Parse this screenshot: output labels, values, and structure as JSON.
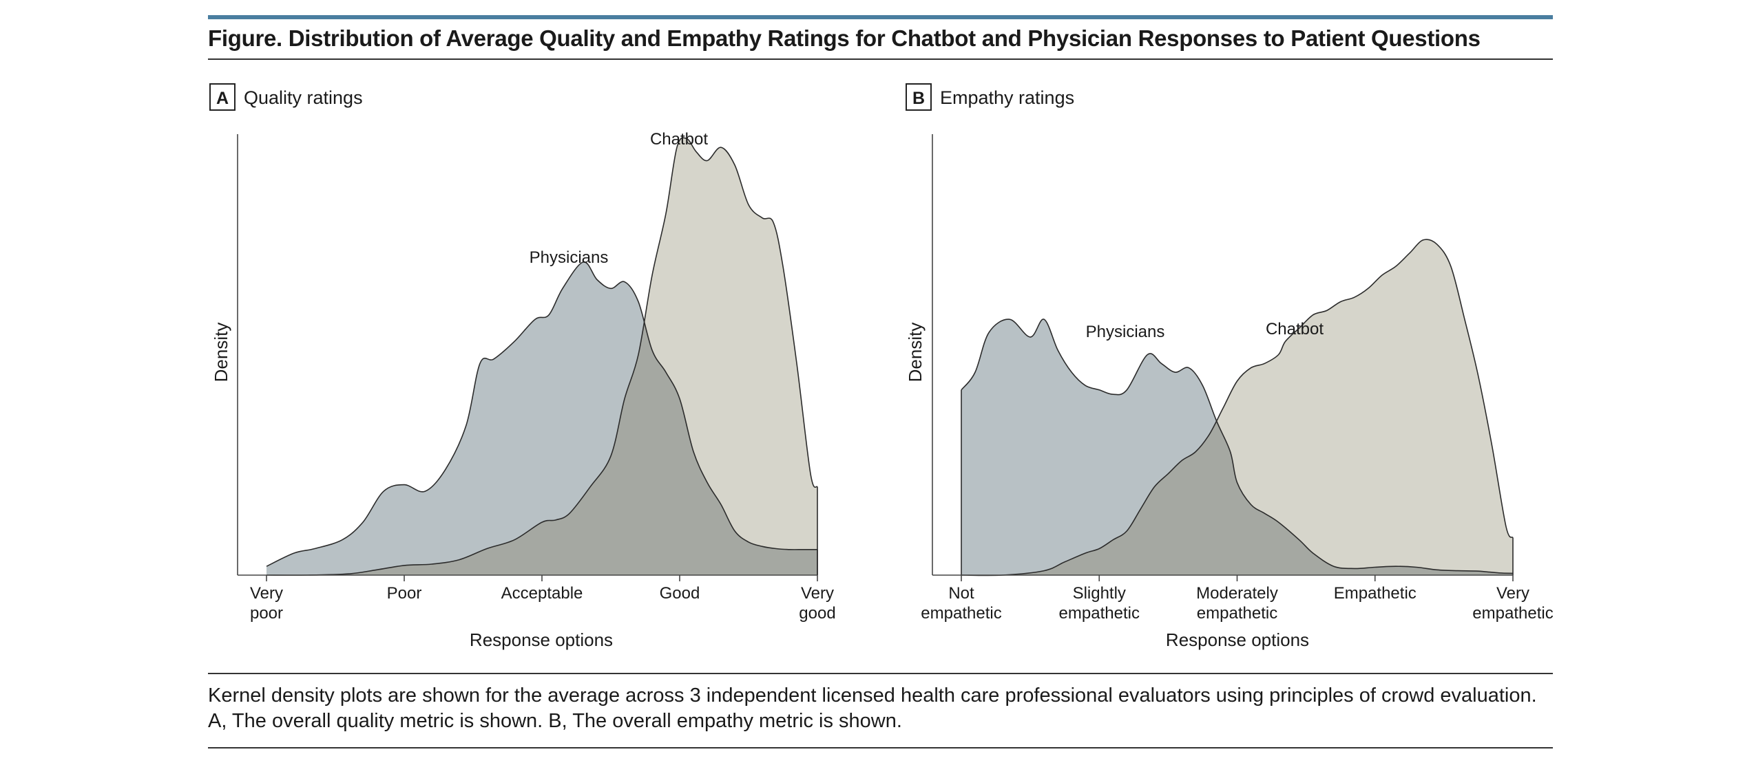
{
  "figure": {
    "title": "Figure. Distribution of Average Quality and Empathy Ratings for Chatbot and Physician Responses to Patient Questions",
    "caption": "Kernel density plots are shown for the average across 3 independent licensed health care professional evaluators using principles of crowd evaluation. A, The overall quality metric is shown. B, The overall empathy metric is shown."
  },
  "colors": {
    "physicians": "#b8c1c5",
    "chatbot": "#d6d5cb",
    "overlap": "#a5a8a2",
    "stroke": "#2b2b2b",
    "accent_rule": "#4a7ea0"
  },
  "chart_data": [
    {
      "type": "area",
      "panel_letter": "A",
      "panel_title": "Quality ratings",
      "xlabel": "Response options",
      "ylabel": "Density",
      "xlim": [
        1,
        5
      ],
      "ylim": [
        0,
        1
      ],
      "tick_labels": [
        [
          "Very",
          "poor"
        ],
        [
          "Poor"
        ],
        [
          "Acceptable"
        ],
        [
          "Good"
        ],
        [
          "Very",
          "good"
        ]
      ],
      "ticks": [
        1,
        2,
        3,
        4,
        5
      ],
      "annotations": [
        {
          "text": "Chatbot",
          "series": "Chatbot"
        },
        {
          "text": "Physicians",
          "series": "Physicians"
        }
      ],
      "series": [
        {
          "name": "Physicians",
          "x": [
            1.0,
            1.2,
            1.35,
            1.55,
            1.7,
            1.85,
            2.0,
            2.15,
            2.3,
            2.45,
            2.55,
            2.65,
            2.8,
            2.95,
            3.05,
            3.15,
            3.3,
            3.4,
            3.5,
            3.6,
            3.7,
            3.8,
            3.9,
            4.0,
            4.1,
            4.2,
            4.3,
            4.4,
            4.5,
            4.6,
            4.7,
            4.8,
            4.9,
            5.0
          ],
          "y": [
            0.02,
            0.05,
            0.06,
            0.08,
            0.12,
            0.19,
            0.205,
            0.19,
            0.24,
            0.34,
            0.48,
            0.49,
            0.53,
            0.58,
            0.59,
            0.65,
            0.71,
            0.67,
            0.65,
            0.665,
            0.62,
            0.51,
            0.46,
            0.4,
            0.28,
            0.21,
            0.16,
            0.1,
            0.075,
            0.065,
            0.06,
            0.058,
            0.058,
            0.058
          ]
        },
        {
          "name": "Chatbot",
          "x": [
            1.0,
            1.3,
            1.6,
            1.8,
            2.0,
            2.2,
            2.4,
            2.6,
            2.8,
            3.0,
            3.1,
            3.2,
            3.35,
            3.5,
            3.6,
            3.7,
            3.8,
            3.9,
            3.98,
            4.05,
            4.12,
            4.2,
            4.3,
            4.4,
            4.5,
            4.6,
            4.68,
            4.75,
            4.85,
            4.95,
            5.0
          ],
          "y": [
            0.0,
            0.0,
            0.003,
            0.012,
            0.022,
            0.025,
            0.035,
            0.06,
            0.08,
            0.12,
            0.125,
            0.14,
            0.2,
            0.27,
            0.4,
            0.5,
            0.68,
            0.82,
            0.97,
            0.99,
            0.96,
            0.94,
            0.97,
            0.93,
            0.84,
            0.81,
            0.8,
            0.7,
            0.48,
            0.23,
            0.2
          ]
        }
      ]
    },
    {
      "type": "area",
      "panel_letter": "B",
      "panel_title": "Empathy ratings",
      "xlabel": "Response options",
      "ylabel": "Density",
      "xlim": [
        1,
        5
      ],
      "ylim": [
        0,
        1
      ],
      "tick_labels": [
        [
          "Not",
          "empathetic"
        ],
        [
          "Slightly",
          "empathetic"
        ],
        [
          "Moderately",
          "empathetic"
        ],
        [
          "Empathetic"
        ],
        [
          "Very",
          "empathetic"
        ]
      ],
      "ticks": [
        1,
        2,
        3,
        4,
        5
      ],
      "annotations": [
        {
          "text": "Physicians",
          "series": "Physicians"
        },
        {
          "text": "Chatbot",
          "series": "Chatbot"
        }
      ],
      "series": [
        {
          "name": "Physicians",
          "x": [
            1.0,
            1.1,
            1.2,
            1.35,
            1.5,
            1.6,
            1.7,
            1.8,
            1.9,
            2.0,
            2.1,
            2.2,
            2.35,
            2.45,
            2.55,
            2.65,
            2.75,
            2.85,
            2.95,
            3.0,
            3.1,
            3.2,
            3.3,
            3.45,
            3.55,
            3.7,
            3.85,
            4.0,
            4.15,
            4.3,
            4.45,
            4.6,
            4.75,
            4.9,
            5.0
          ],
          "y": [
            0.42,
            0.46,
            0.55,
            0.58,
            0.54,
            0.58,
            0.51,
            0.46,
            0.43,
            0.42,
            0.41,
            0.42,
            0.5,
            0.48,
            0.46,
            0.47,
            0.43,
            0.35,
            0.28,
            0.21,
            0.16,
            0.14,
            0.12,
            0.08,
            0.05,
            0.02,
            0.015,
            0.018,
            0.02,
            0.018,
            0.012,
            0.01,
            0.009,
            0.005,
            0.004
          ]
        },
        {
          "name": "Chatbot",
          "x": [
            1.0,
            1.3,
            1.6,
            1.75,
            1.9,
            2.0,
            2.1,
            2.2,
            2.3,
            2.4,
            2.5,
            2.6,
            2.7,
            2.8,
            2.9,
            3.0,
            3.1,
            3.2,
            3.3,
            3.35,
            3.45,
            3.55,
            3.65,
            3.75,
            3.85,
            3.95,
            4.05,
            4.15,
            4.25,
            4.35,
            4.45,
            4.55,
            4.65,
            4.75,
            4.85,
            4.95,
            5.0
          ],
          "y": [
            0.0,
            0.0,
            0.01,
            0.03,
            0.05,
            0.06,
            0.08,
            0.1,
            0.15,
            0.2,
            0.23,
            0.26,
            0.28,
            0.32,
            0.38,
            0.44,
            0.47,
            0.48,
            0.5,
            0.53,
            0.56,
            0.59,
            0.6,
            0.62,
            0.63,
            0.65,
            0.68,
            0.7,
            0.73,
            0.76,
            0.75,
            0.7,
            0.58,
            0.45,
            0.29,
            0.11,
            0.085
          ]
        }
      ]
    }
  ]
}
